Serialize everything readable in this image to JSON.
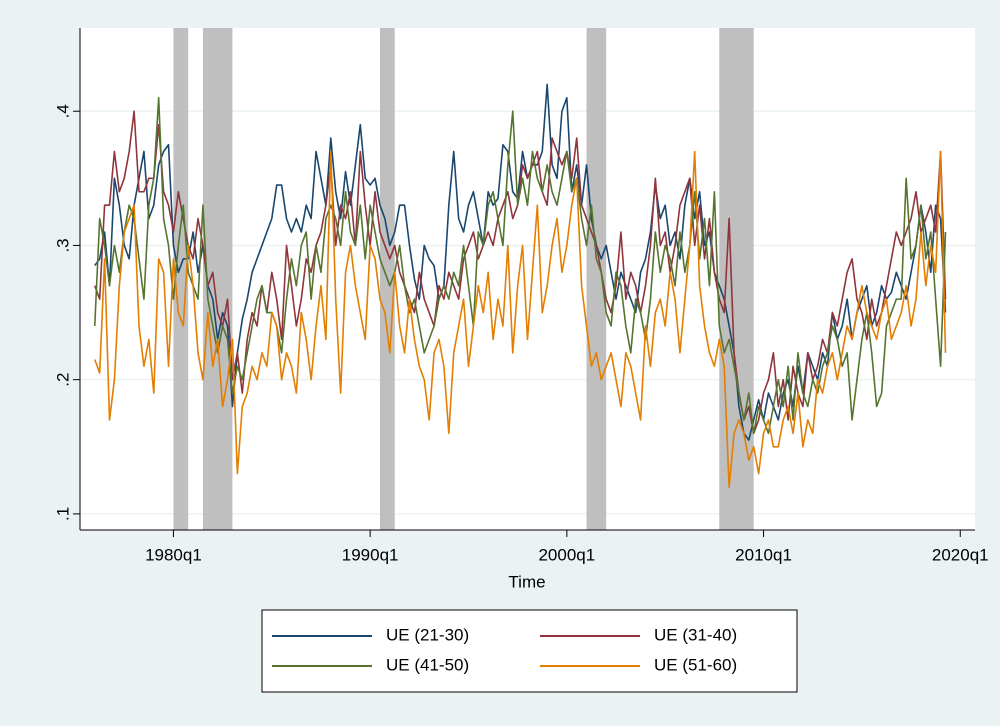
{
  "chart_data": {
    "type": "line",
    "x_title": "Time",
    "x": [
      "1976q1",
      "1976q2",
      "1976q3",
      "1976q4",
      "1977q1",
      "1977q2",
      "1977q3",
      "1977q4",
      "1978q1",
      "1978q2",
      "1978q3",
      "1978q4",
      "1979q1",
      "1979q2",
      "1979q3",
      "1979q4",
      "1980q1",
      "1980q2",
      "1980q3",
      "1980q4",
      "1981q1",
      "1981q2",
      "1981q3",
      "1981q4",
      "1982q1",
      "1982q2",
      "1982q3",
      "1982q4",
      "1983q1",
      "1983q2",
      "1983q3",
      "1983q4",
      "1984q1",
      "1984q2",
      "1984q3",
      "1984q4",
      "1985q1",
      "1985q2",
      "1985q3",
      "1985q4",
      "1986q1",
      "1986q2",
      "1986q3",
      "1986q4",
      "1987q1",
      "1987q2",
      "1987q3",
      "1987q4",
      "1988q1",
      "1988q2",
      "1988q3",
      "1988q4",
      "1989q1",
      "1989q2",
      "1989q3",
      "1989q4",
      "1990q1",
      "1990q2",
      "1990q3",
      "1990q4",
      "1991q1",
      "1991q2",
      "1991q3",
      "1991q4",
      "1992q1",
      "1992q2",
      "1992q3",
      "1992q4",
      "1993q1",
      "1993q2",
      "1993q3",
      "1993q4",
      "1994q1",
      "1994q2",
      "1994q3",
      "1994q4",
      "1995q1",
      "1995q2",
      "1995q3",
      "1995q4",
      "1996q1",
      "1996q2",
      "1996q3",
      "1996q4",
      "1997q1",
      "1997q2",
      "1997q3",
      "1997q4",
      "1998q1",
      "1998q2",
      "1998q3",
      "1998q4",
      "1999q1",
      "1999q2",
      "1999q3",
      "1999q4",
      "2000q1",
      "2000q2",
      "2000q3",
      "2000q4",
      "2001q1",
      "2001q2",
      "2001q3",
      "2001q4",
      "2002q1",
      "2002q2",
      "2002q3",
      "2002q4",
      "2003q1",
      "2003q2",
      "2003q3",
      "2003q4",
      "2004q1",
      "2004q2",
      "2004q3",
      "2004q4",
      "2005q1",
      "2005q2",
      "2005q3",
      "2005q4",
      "2006q1",
      "2006q2",
      "2006q3",
      "2006q4",
      "2007q1",
      "2007q2",
      "2007q3",
      "2007q4",
      "2008q1",
      "2008q2",
      "2008q3",
      "2008q4",
      "2009q1",
      "2009q2",
      "2009q3",
      "2009q4",
      "2010q1",
      "2010q2",
      "2010q3",
      "2010q4",
      "2011q1",
      "2011q2",
      "2011q3",
      "2011q4",
      "2012q1",
      "2012q2",
      "2012q3",
      "2012q4",
      "2013q1",
      "2013q2",
      "2013q3",
      "2013q4",
      "2014q1",
      "2014q2",
      "2014q3",
      "2014q4",
      "2015q1",
      "2015q2",
      "2015q3",
      "2015q4",
      "2016q1",
      "2016q2",
      "2016q3",
      "2016q4",
      "2017q1",
      "2017q2",
      "2017q3",
      "2017q4",
      "2018q1",
      "2018q2",
      "2018q3",
      "2018q4",
      "2019q1",
      "2019q2"
    ],
    "series": [
      {
        "name": "UE (21-30)",
        "color": "#1a476f",
        "values": [
          0.285,
          0.29,
          0.31,
          0.27,
          0.35,
          0.33,
          0.3,
          0.29,
          0.33,
          0.35,
          0.37,
          0.32,
          0.33,
          0.36,
          0.37,
          0.375,
          0.3,
          0.28,
          0.29,
          0.29,
          0.31,
          0.28,
          0.3,
          0.27,
          0.26,
          0.23,
          0.25,
          0.24,
          0.18,
          0.22,
          0.245,
          0.26,
          0.28,
          0.29,
          0.3,
          0.31,
          0.32,
          0.345,
          0.345,
          0.32,
          0.31,
          0.32,
          0.31,
          0.33,
          0.32,
          0.37,
          0.35,
          0.33,
          0.38,
          0.34,
          0.32,
          0.355,
          0.33,
          0.36,
          0.39,
          0.35,
          0.345,
          0.35,
          0.33,
          0.32,
          0.3,
          0.31,
          0.33,
          0.33,
          0.3,
          0.275,
          0.26,
          0.3,
          0.29,
          0.285,
          0.26,
          0.27,
          0.33,
          0.37,
          0.32,
          0.31,
          0.33,
          0.34,
          0.32,
          0.3,
          0.34,
          0.33,
          0.335,
          0.375,
          0.37,
          0.34,
          0.335,
          0.37,
          0.35,
          0.36,
          0.36,
          0.37,
          0.42,
          0.36,
          0.35,
          0.4,
          0.41,
          0.34,
          0.36,
          0.33,
          0.36,
          0.32,
          0.3,
          0.29,
          0.3,
          0.28,
          0.26,
          0.28,
          0.27,
          0.26,
          0.25,
          0.28,
          0.29,
          0.31,
          0.345,
          0.32,
          0.33,
          0.3,
          0.31,
          0.29,
          0.33,
          0.35,
          0.32,
          0.34,
          0.3,
          0.31,
          0.28,
          0.27,
          0.26,
          0.24,
          0.22,
          0.18,
          0.16,
          0.155,
          0.17,
          0.185,
          0.17,
          0.19,
          0.18,
          0.17,
          0.19,
          0.2,
          0.18,
          0.21,
          0.19,
          0.22,
          0.21,
          0.2,
          0.22,
          0.21,
          0.25,
          0.23,
          0.24,
          0.26,
          0.23,
          0.25,
          0.26,
          0.27,
          0.24,
          0.25,
          0.27,
          0.26,
          0.265,
          0.28,
          0.27,
          0.26,
          0.28,
          0.3,
          0.33,
          0.31,
          0.28,
          0.33,
          0.32,
          0.25
        ]
      },
      {
        "name": "UE (31-40)",
        "color": "#90353b",
        "values": [
          0.27,
          0.26,
          0.33,
          0.33,
          0.37,
          0.34,
          0.35,
          0.37,
          0.4,
          0.34,
          0.34,
          0.35,
          0.35,
          0.39,
          0.34,
          0.33,
          0.31,
          0.34,
          0.32,
          0.3,
          0.29,
          0.32,
          0.3,
          0.27,
          0.28,
          0.25,
          0.24,
          0.26,
          0.2,
          0.22,
          0.19,
          0.23,
          0.25,
          0.24,
          0.27,
          0.25,
          0.28,
          0.26,
          0.23,
          0.3,
          0.27,
          0.24,
          0.26,
          0.29,
          0.28,
          0.3,
          0.31,
          0.33,
          0.36,
          0.3,
          0.33,
          0.32,
          0.34,
          0.3,
          0.37,
          0.33,
          0.3,
          0.34,
          0.31,
          0.3,
          0.29,
          0.3,
          0.28,
          0.27,
          0.26,
          0.25,
          0.28,
          0.26,
          0.25,
          0.24,
          0.27,
          0.26,
          0.28,
          0.27,
          0.26,
          0.29,
          0.3,
          0.31,
          0.29,
          0.3,
          0.31,
          0.3,
          0.32,
          0.33,
          0.34,
          0.32,
          0.33,
          0.36,
          0.35,
          0.36,
          0.37,
          0.34,
          0.33,
          0.38,
          0.37,
          0.36,
          0.37,
          0.35,
          0.38,
          0.33,
          0.32,
          0.31,
          0.3,
          0.28,
          0.26,
          0.25,
          0.27,
          0.31,
          0.26,
          0.28,
          0.27,
          0.25,
          0.27,
          0.3,
          0.35,
          0.3,
          0.31,
          0.28,
          0.3,
          0.33,
          0.34,
          0.35,
          0.3,
          0.33,
          0.29,
          0.32,
          0.28,
          0.26,
          0.25,
          0.32,
          0.22,
          0.19,
          0.17,
          0.18,
          0.16,
          0.17,
          0.19,
          0.2,
          0.22,
          0.18,
          0.2,
          0.17,
          0.21,
          0.19,
          0.18,
          0.22,
          0.2,
          0.21,
          0.23,
          0.22,
          0.25,
          0.24,
          0.26,
          0.28,
          0.29,
          0.26,
          0.25,
          0.23,
          0.26,
          0.24,
          0.25,
          0.27,
          0.29,
          0.31,
          0.3,
          0.31,
          0.32,
          0.34,
          0.31,
          0.32,
          0.33,
          0.31,
          0.37,
          0.26
        ]
      },
      {
        "name": "UE (41-50)",
        "color": "#55752f",
        "values": [
          0.24,
          0.32,
          0.3,
          0.27,
          0.3,
          0.28,
          0.31,
          0.33,
          0.32,
          0.29,
          0.26,
          0.33,
          0.35,
          0.41,
          0.32,
          0.3,
          0.26,
          0.3,
          0.33,
          0.28,
          0.27,
          0.26,
          0.33,
          0.26,
          0.24,
          0.22,
          0.24,
          0.23,
          0.19,
          0.21,
          0.2,
          0.22,
          0.24,
          0.26,
          0.27,
          0.25,
          0.25,
          0.24,
          0.22,
          0.26,
          0.29,
          0.27,
          0.3,
          0.31,
          0.26,
          0.3,
          0.28,
          0.32,
          0.33,
          0.32,
          0.3,
          0.34,
          0.31,
          0.3,
          0.33,
          0.29,
          0.33,
          0.31,
          0.29,
          0.28,
          0.27,
          0.28,
          0.3,
          0.27,
          0.25,
          0.26,
          0.24,
          0.22,
          0.23,
          0.24,
          0.26,
          0.27,
          0.26,
          0.28,
          0.27,
          0.3,
          0.27,
          0.24,
          0.31,
          0.3,
          0.33,
          0.34,
          0.32,
          0.3,
          0.36,
          0.4,
          0.33,
          0.35,
          0.33,
          0.37,
          0.35,
          0.34,
          0.36,
          0.34,
          0.33,
          0.35,
          0.37,
          0.34,
          0.35,
          0.32,
          0.3,
          0.33,
          0.29,
          0.28,
          0.25,
          0.24,
          0.28,
          0.27,
          0.24,
          0.22,
          0.26,
          0.25,
          0.23,
          0.26,
          0.31,
          0.28,
          0.3,
          0.29,
          0.27,
          0.31,
          0.28,
          0.3,
          0.34,
          0.29,
          0.32,
          0.27,
          0.34,
          0.24,
          0.22,
          0.23,
          0.21,
          0.19,
          0.17,
          0.19,
          0.16,
          0.18,
          0.17,
          0.16,
          0.18,
          0.2,
          0.18,
          0.21,
          0.17,
          0.22,
          0.19,
          0.18,
          0.2,
          0.19,
          0.21,
          0.22,
          0.24,
          0.23,
          0.21,
          0.22,
          0.17,
          0.2,
          0.23,
          0.25,
          0.22,
          0.18,
          0.19,
          0.24,
          0.25,
          0.26,
          0.26,
          0.35,
          0.29,
          0.3,
          0.33,
          0.29,
          0.31,
          0.26,
          0.21,
          0.31
        ]
      },
      {
        "name": "UE (51-60)",
        "color": "#e37e00",
        "values": [
          0.215,
          0.205,
          0.29,
          0.17,
          0.2,
          0.27,
          0.31,
          0.32,
          0.33,
          0.24,
          0.21,
          0.23,
          0.19,
          0.29,
          0.28,
          0.21,
          0.29,
          0.25,
          0.24,
          0.3,
          0.27,
          0.22,
          0.2,
          0.25,
          0.21,
          0.23,
          0.18,
          0.2,
          0.23,
          0.13,
          0.18,
          0.19,
          0.21,
          0.2,
          0.22,
          0.21,
          0.25,
          0.24,
          0.2,
          0.22,
          0.21,
          0.19,
          0.25,
          0.23,
          0.2,
          0.24,
          0.27,
          0.23,
          0.37,
          0.26,
          0.19,
          0.28,
          0.3,
          0.27,
          0.25,
          0.23,
          0.3,
          0.29,
          0.26,
          0.25,
          0.22,
          0.28,
          0.24,
          0.22,
          0.26,
          0.23,
          0.21,
          0.2,
          0.17,
          0.22,
          0.23,
          0.21,
          0.16,
          0.22,
          0.24,
          0.26,
          0.21,
          0.24,
          0.27,
          0.25,
          0.28,
          0.23,
          0.26,
          0.24,
          0.3,
          0.22,
          0.27,
          0.3,
          0.23,
          0.28,
          0.33,
          0.25,
          0.27,
          0.3,
          0.32,
          0.28,
          0.3,
          0.33,
          0.35,
          0.27,
          0.24,
          0.21,
          0.22,
          0.2,
          0.21,
          0.22,
          0.2,
          0.18,
          0.22,
          0.21,
          0.19,
          0.17,
          0.24,
          0.21,
          0.25,
          0.26,
          0.24,
          0.28,
          0.26,
          0.22,
          0.26,
          0.3,
          0.37,
          0.27,
          0.24,
          0.22,
          0.21,
          0.23,
          0.21,
          0.12,
          0.16,
          0.17,
          0.16,
          0.14,
          0.15,
          0.13,
          0.16,
          0.17,
          0.15,
          0.15,
          0.17,
          0.18,
          0.16,
          0.19,
          0.15,
          0.17,
          0.16,
          0.2,
          0.19,
          0.21,
          0.22,
          0.2,
          0.22,
          0.24,
          0.23,
          0.25,
          0.27,
          0.25,
          0.24,
          0.23,
          0.25,
          0.26,
          0.23,
          0.24,
          0.25,
          0.27,
          0.24,
          0.26,
          0.31,
          0.27,
          0.3,
          0.28,
          0.37,
          0.22
        ]
      }
    ],
    "recessions": [
      [
        "1980q1",
        "1980q3"
      ],
      [
        "1981q3",
        "1982q4"
      ],
      [
        "1990q3",
        "1991q1"
      ],
      [
        "2001q1",
        "2001q4"
      ],
      [
        "2007q4",
        "2009q2"
      ]
    ],
    "xlim": [
      "1975q2",
      "2020q4"
    ],
    "xticks": [
      "1980q1",
      "1990q1",
      "2000q1",
      "2010q1",
      "2020q1"
    ],
    "ylim": [
      0.088,
      0.462
    ],
    "yticks": [
      {
        "value": 0.1,
        "label": ".1"
      },
      {
        "value": 0.2,
        "label": ".2"
      },
      {
        "value": 0.3,
        "label": ".3"
      },
      {
        "value": 0.4,
        "label": ".4"
      }
    ],
    "grid": true,
    "legend": "bottom",
    "recession_color": "#bfbfbf"
  }
}
